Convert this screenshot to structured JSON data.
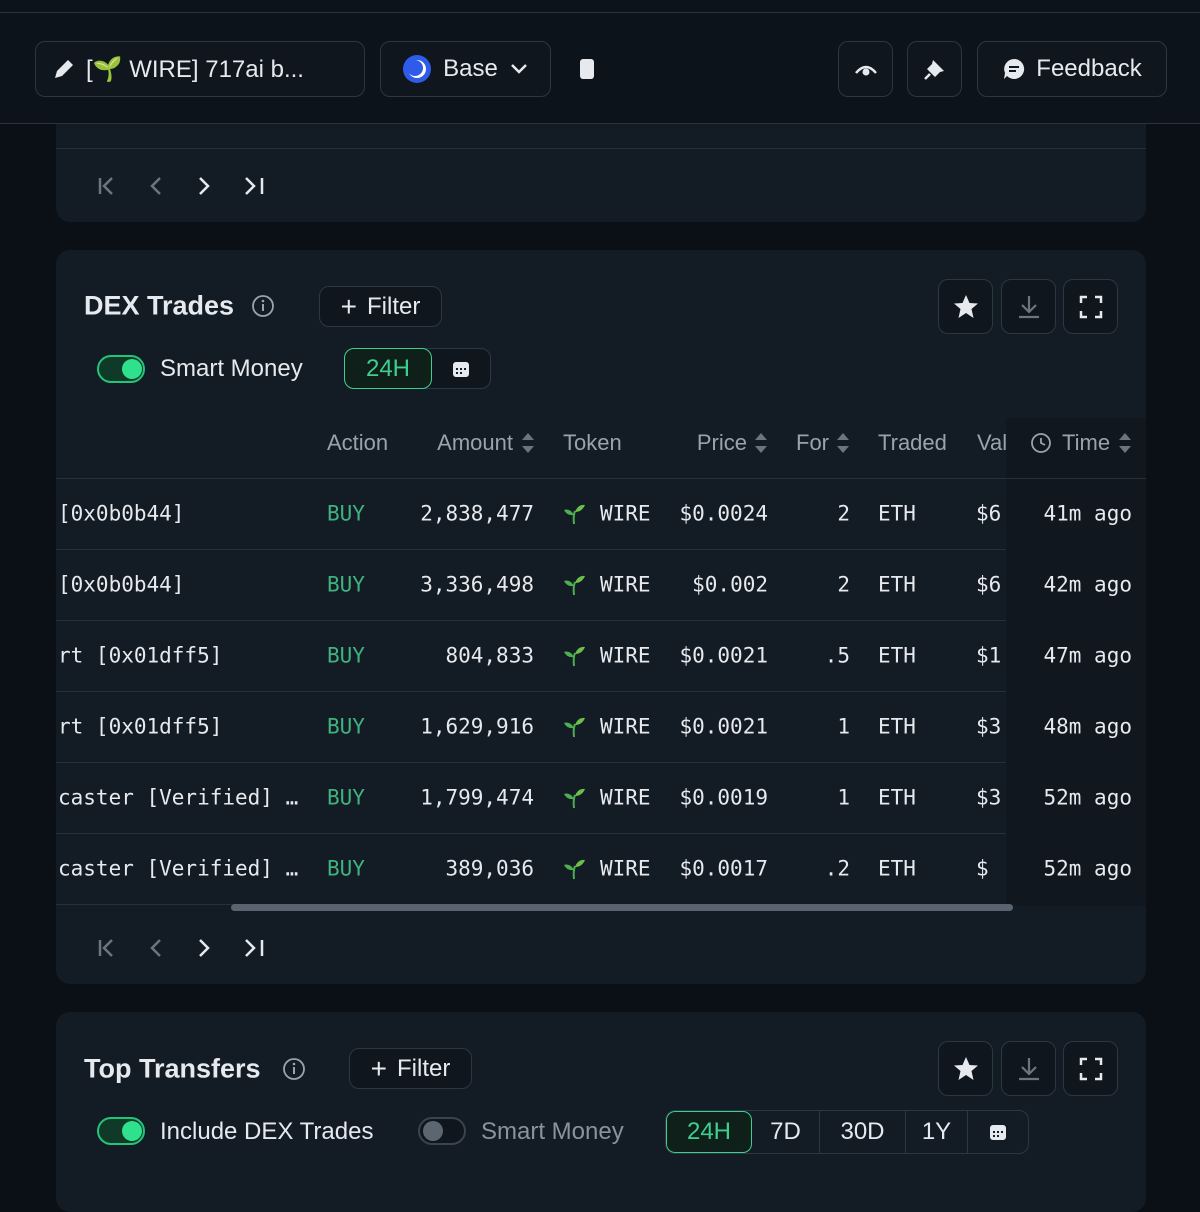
{
  "header": {
    "title": "[🌱 WIRE] 717ai b...",
    "chain": "Base",
    "feedback": "Feedback"
  },
  "dex_trades": {
    "title": "DEX Trades",
    "filter": "Filter",
    "toggle_label": "Smart Money",
    "period": "24H",
    "columns": {
      "action": "Action",
      "amount": "Amount",
      "token": "Token",
      "price": "Price",
      "for": "For",
      "traded": "Traded",
      "val": "Val",
      "time": "Time"
    },
    "rows": [
      {
        "trader": "[0x0b0b44]",
        "action": "BUY",
        "amount": "2,838,477",
        "token": "WIRE",
        "price": "$0.0024",
        "for": "2",
        "traded": "ETH",
        "val": "$6",
        "time": "41m ago"
      },
      {
        "trader": "[0x0b0b44]",
        "action": "BUY",
        "amount": "3,336,498",
        "token": "WIRE",
        "price": "$0.002",
        "for": "2",
        "traded": "ETH",
        "val": "$6",
        "time": "42m ago"
      },
      {
        "trader": "rt [0x01dff5]",
        "action": "BUY",
        "amount": "804,833",
        "token": "WIRE",
        "price": "$0.0021",
        "for": ".5",
        "traded": "ETH",
        "val": "$1",
        "time": "47m ago"
      },
      {
        "trader": "rt [0x01dff5]",
        "action": "BUY",
        "amount": "1,629,916",
        "token": "WIRE",
        "price": "$0.0021",
        "for": "1",
        "traded": "ETH",
        "val": "$3",
        "time": "48m ago"
      },
      {
        "trader": "caster [Verified] …",
        "action": "BUY",
        "amount": "1,799,474",
        "token": "WIRE",
        "price": "$0.0019",
        "for": "1",
        "traded": "ETH",
        "val": "$3",
        "time": "52m ago"
      },
      {
        "trader": "caster [Verified] …",
        "action": "BUY",
        "amount": "389,036",
        "token": "WIRE",
        "price": "$0.0017",
        "for": ".2",
        "traded": "ETH",
        "val": "$",
        "time": "52m ago"
      }
    ]
  },
  "top_transfers": {
    "title": "Top Transfers",
    "filter": "Filter",
    "toggle_dex": "Include DEX Trades",
    "toggle_smart": "Smart Money",
    "periods": [
      "24H",
      "7D",
      "30D",
      "1Y"
    ]
  }
}
